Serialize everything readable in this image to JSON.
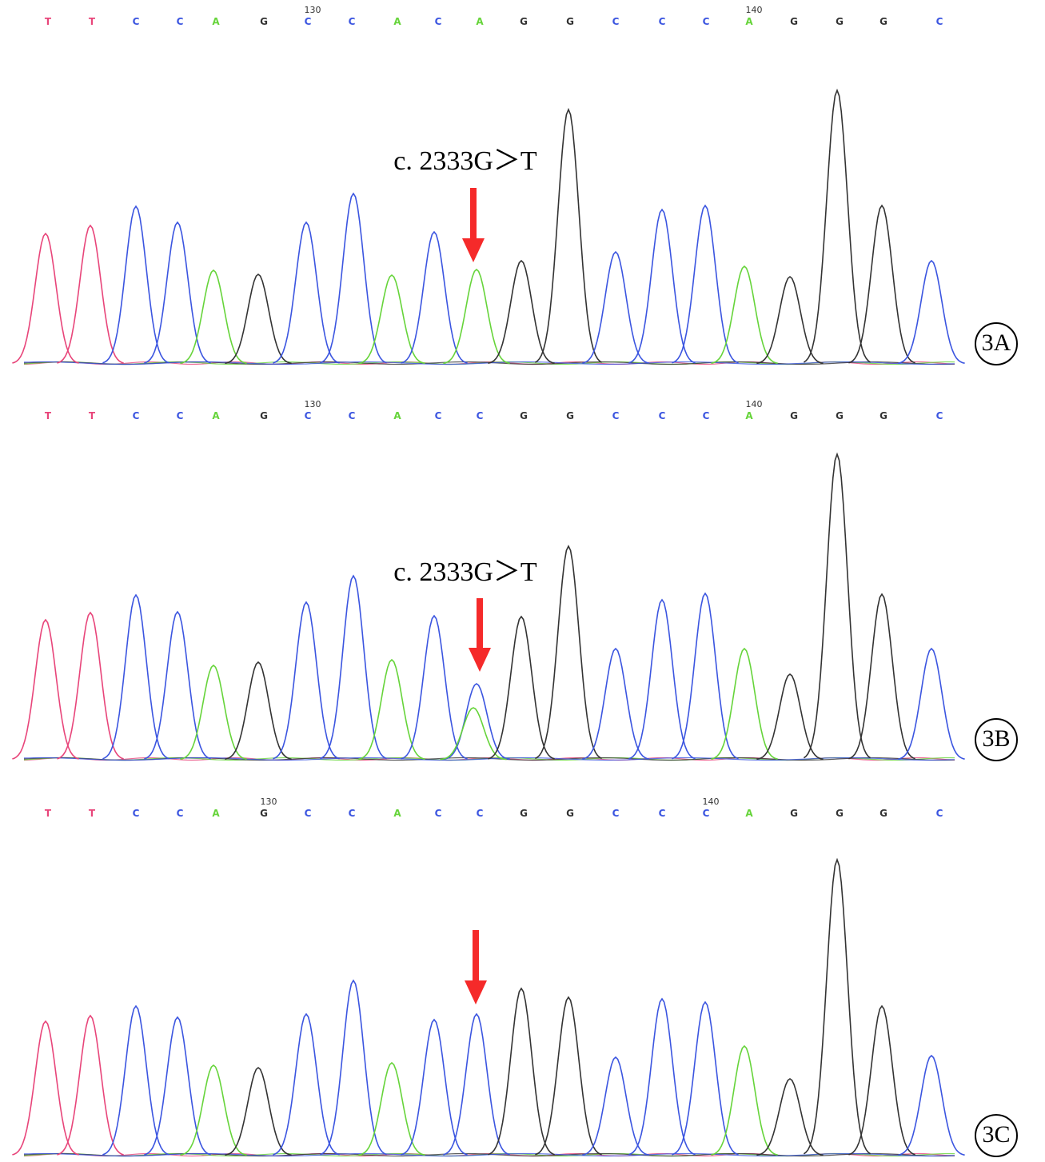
{
  "colors": {
    "T": "#e8457a",
    "C": "#3b55e0",
    "A": "#66d43a",
    "G": "#333333"
  },
  "panels": [
    {
      "label": "3A",
      "annotation": "c. 2333G＞T",
      "position_labels": [
        "130",
        "140"
      ],
      "peaks": [
        {
          "base": "T",
          "height": 163
        },
        {
          "base": "T",
          "height": 173
        },
        {
          "base": "C",
          "height": 197
        },
        {
          "base": "C",
          "height": 177
        },
        {
          "base": "A",
          "height": 117
        },
        {
          "base": "G",
          "height": 112
        },
        {
          "base": "C",
          "height": 177
        },
        {
          "base": "C",
          "height": 213
        },
        {
          "base": "A",
          "height": 111
        },
        {
          "base": "C",
          "height": 165
        },
        {
          "base": "A",
          "height": 118
        },
        {
          "base": "G",
          "height": 129
        },
        {
          "base": "G",
          "height": 318
        },
        {
          "base": "C",
          "height": 140
        },
        {
          "base": "C",
          "height": 193
        },
        {
          "base": "C",
          "height": 198
        },
        {
          "base": "A",
          "height": 122
        },
        {
          "base": "G",
          "height": 109
        },
        {
          "base": "G",
          "height": 342
        },
        {
          "base": "G",
          "height": 198
        },
        {
          "base": "C",
          "height": 129
        }
      ]
    },
    {
      "label": "3B",
      "annotation": "c. 2333G＞T",
      "position_labels": [
        "130",
        "140"
      ],
      "peaks": [
        {
          "base": "T",
          "height": 175
        },
        {
          "base": "T",
          "height": 184
        },
        {
          "base": "C",
          "height": 206
        },
        {
          "base": "C",
          "height": 185
        },
        {
          "base": "A",
          "height": 118
        },
        {
          "base": "G",
          "height": 122
        },
        {
          "base": "C",
          "height": 197
        },
        {
          "base": "C",
          "height": 230
        },
        {
          "base": "A",
          "height": 125
        },
        {
          "base": "C",
          "height": 180
        },
        {
          "base": "C",
          "height": 95,
          "secondary": {
            "base": "A",
            "height": 65
          }
        },
        {
          "base": "G",
          "height": 179
        },
        {
          "base": "G",
          "height": 267
        },
        {
          "base": "C",
          "height": 139
        },
        {
          "base": "C",
          "height": 200
        },
        {
          "base": "C",
          "height": 208
        },
        {
          "base": "A",
          "height": 139
        },
        {
          "base": "G",
          "height": 107
        },
        {
          "base": "G",
          "height": 382
        },
        {
          "base": "G",
          "height": 207
        },
        {
          "base": "C",
          "height": 139
        }
      ]
    },
    {
      "label": "3C",
      "position_labels": [
        "130",
        "140"
      ],
      "peaks": [
        {
          "base": "T",
          "height": 168
        },
        {
          "base": "T",
          "height": 175
        },
        {
          "base": "C",
          "height": 187
        },
        {
          "base": "C",
          "height": 173
        },
        {
          "base": "A",
          "height": 113
        },
        {
          "base": "G",
          "height": 110
        },
        {
          "base": "C",
          "height": 177
        },
        {
          "base": "C",
          "height": 219
        },
        {
          "base": "A",
          "height": 116
        },
        {
          "base": "C",
          "height": 170
        },
        {
          "base": "C",
          "height": 177
        },
        {
          "base": "G",
          "height": 209
        },
        {
          "base": "G",
          "height": 198
        },
        {
          "base": "C",
          "height": 123
        },
        {
          "base": "C",
          "height": 196
        },
        {
          "base": "C",
          "height": 192
        },
        {
          "base": "A",
          "height": 137
        },
        {
          "base": "G",
          "height": 96
        },
        {
          "base": "G",
          "height": 370
        },
        {
          "base": "G",
          "height": 187
        },
        {
          "base": "C",
          "height": 125
        }
      ]
    }
  ]
}
